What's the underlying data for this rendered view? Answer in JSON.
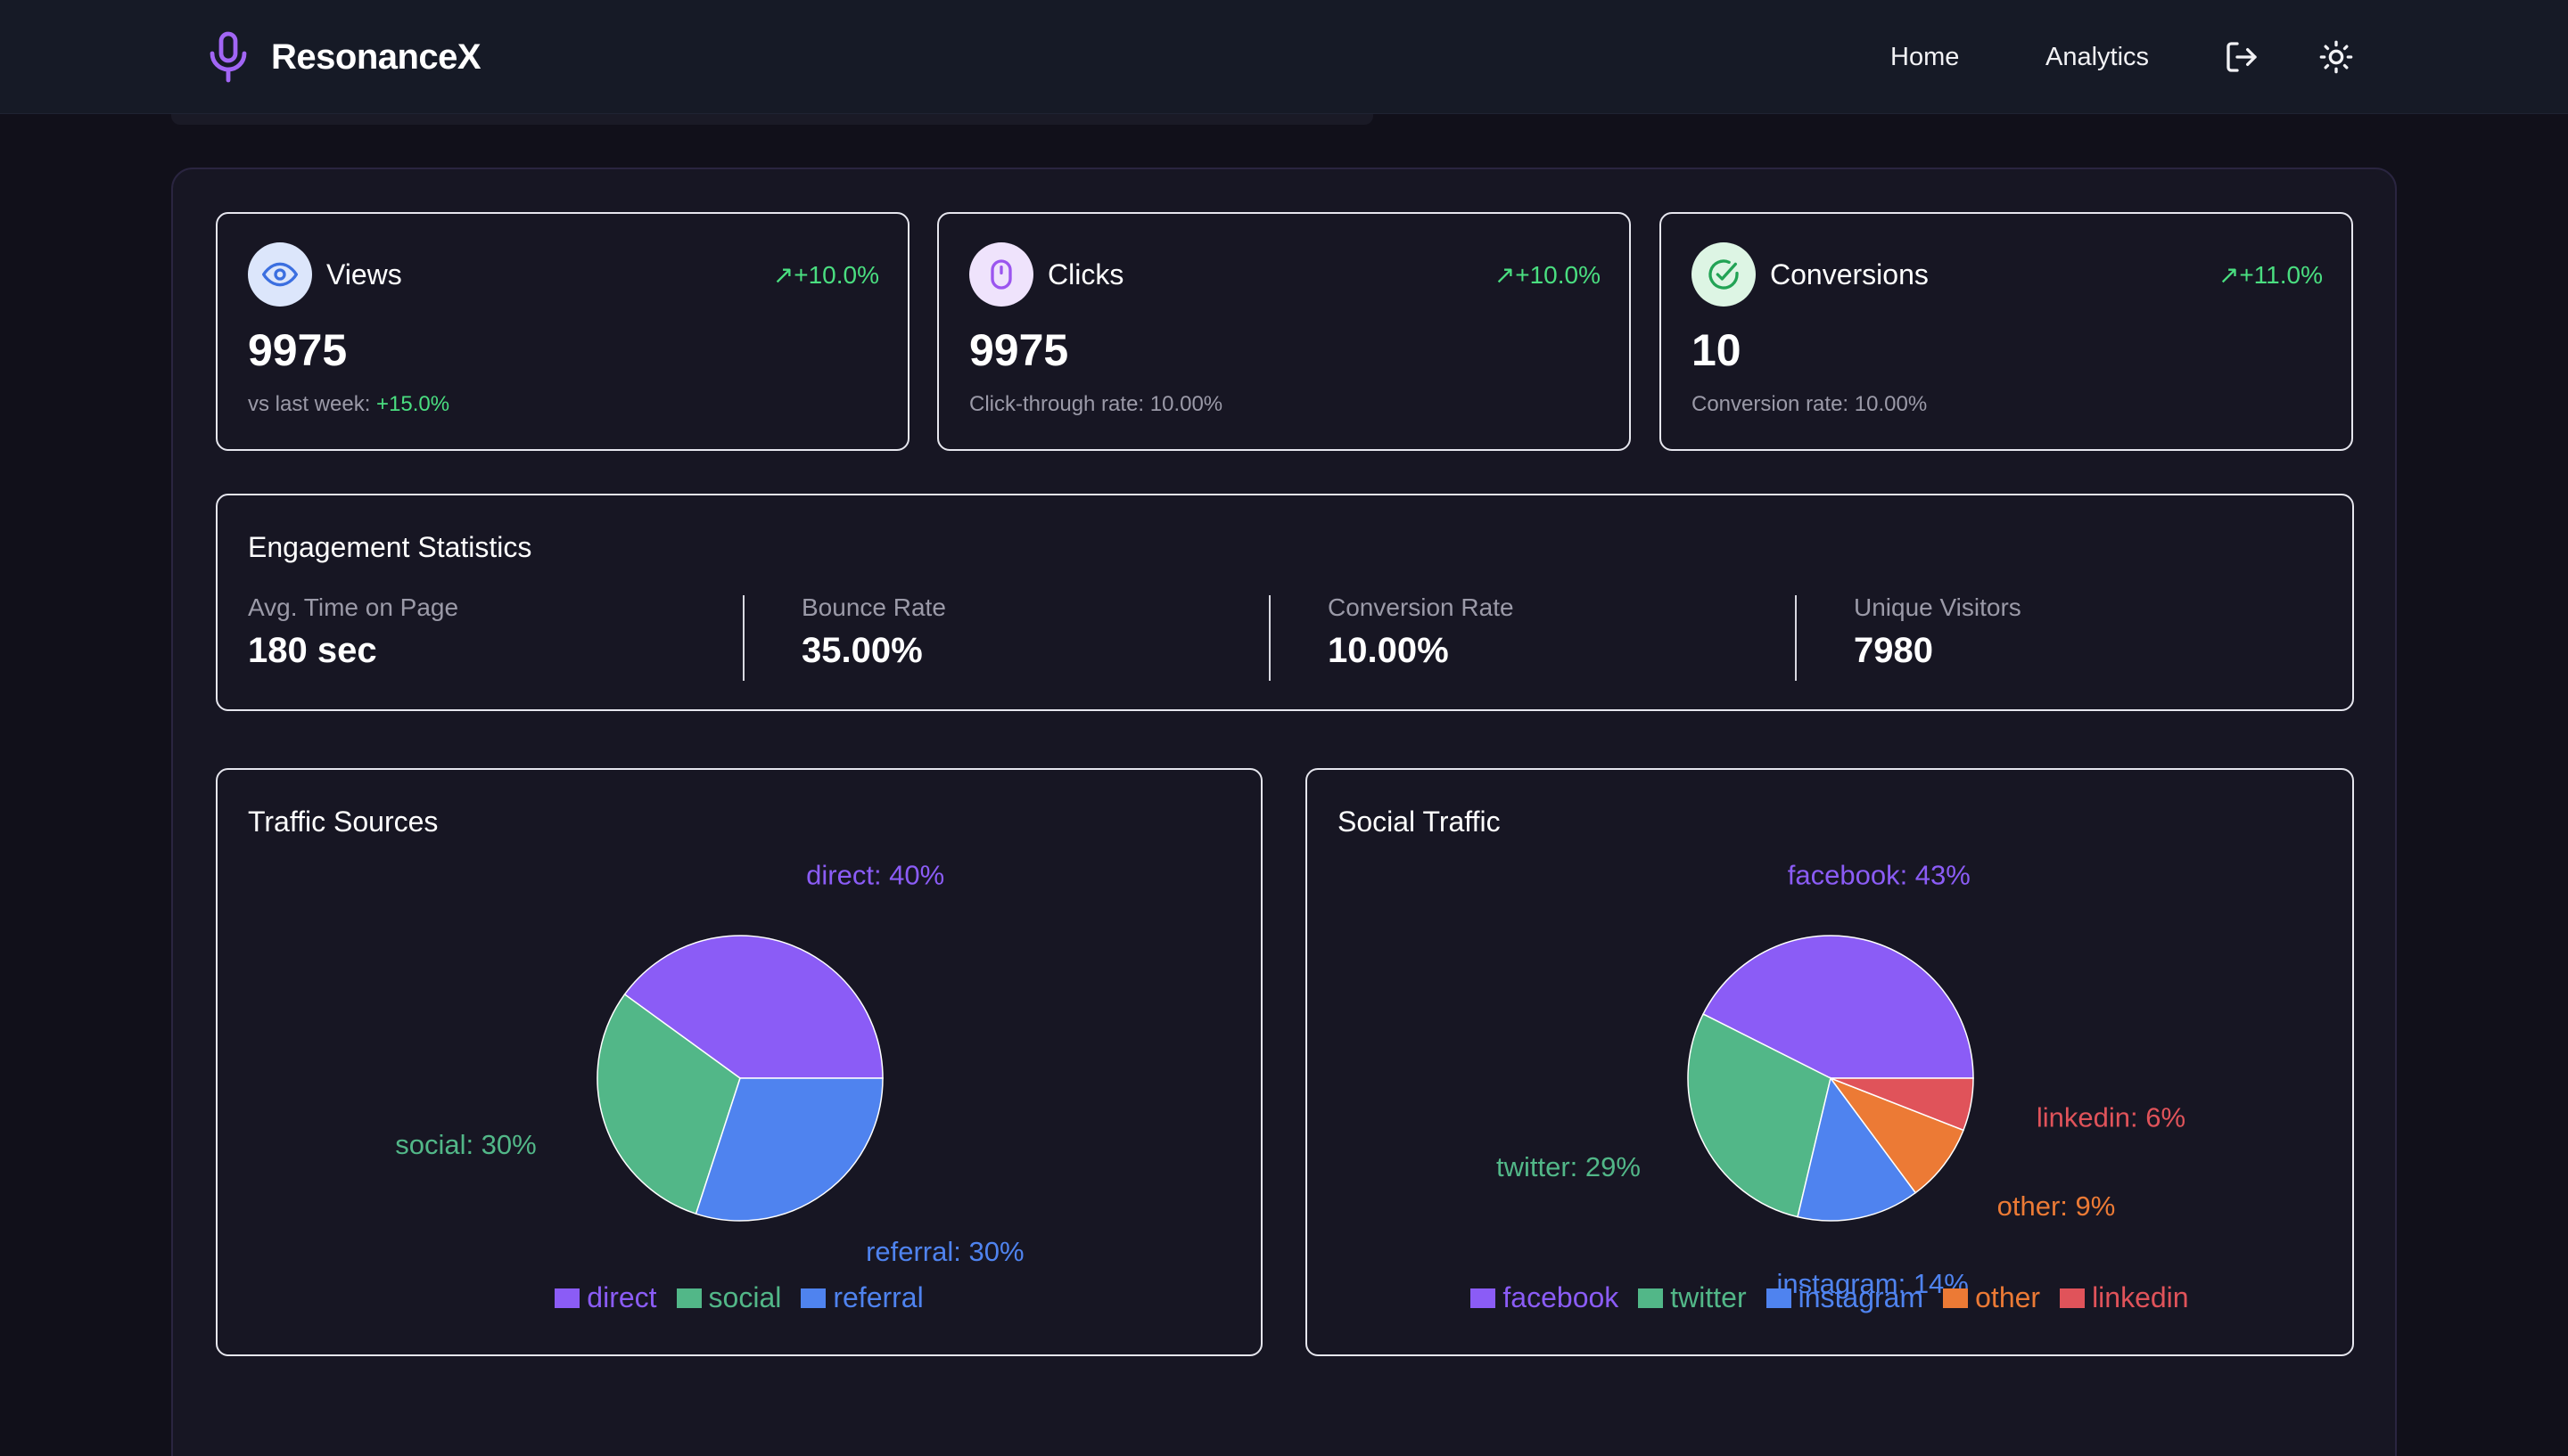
{
  "app": {
    "name": "ResonanceX"
  },
  "nav": {
    "home": "Home",
    "analytics": "Analytics"
  },
  "colors": {
    "purple": "#8b5cf6",
    "green": "#52b788",
    "blue": "#4f83ef",
    "orange": "#ec7a35",
    "red": "#e0535a",
    "up": "#4ade80"
  },
  "stats": [
    {
      "label": "Views",
      "change": "+10.0%",
      "value": "9975",
      "sub_prefix": "vs last week: ",
      "sub_value": "+15.0%",
      "icon": "eye-icon"
    },
    {
      "label": "Clicks",
      "change": "+10.0%",
      "value": "9975",
      "sub": "Click-through rate: 10.00%",
      "icon": "mouse-icon"
    },
    {
      "label": "Conversions",
      "change": "+11.0%",
      "value": "10",
      "sub": "Conversion rate: 10.00%",
      "icon": "check-circle-icon"
    }
  ],
  "engagement": {
    "title": "Engagement Statistics",
    "items": [
      {
        "label": "Avg. Time on Page",
        "value": "180 sec"
      },
      {
        "label": "Bounce Rate",
        "value": "35.00%"
      },
      {
        "label": "Conversion Rate",
        "value": "10.00%"
      },
      {
        "label": "Unique Visitors",
        "value": "7980"
      }
    ]
  },
  "chart_data": [
    {
      "type": "pie",
      "title": "Traffic Sources",
      "slices": [
        {
          "name": "direct",
          "value": 40,
          "label": "direct: 40%",
          "color": "#8b5cf6"
        },
        {
          "name": "social",
          "value": 30,
          "label": "social: 30%",
          "color": "#52b788"
        },
        {
          "name": "referral",
          "value": 30,
          "label": "referral: 30%",
          "color": "#4f83ef"
        }
      ],
      "legend": [
        "direct",
        "social",
        "referral"
      ]
    },
    {
      "type": "pie",
      "title": "Social Traffic",
      "slices": [
        {
          "name": "facebook",
          "value": 43,
          "label": "facebook: 43%",
          "color": "#8b5cf6"
        },
        {
          "name": "twitter",
          "value": 29,
          "label": "twitter: 29%",
          "color": "#52b788"
        },
        {
          "name": "instagram",
          "value": 14,
          "label": "instagram: 14%",
          "color": "#4f83ef"
        },
        {
          "name": "other",
          "value": 9,
          "label": "other: 9%",
          "color": "#ec7a35"
        },
        {
          "name": "linkedin",
          "value": 6,
          "label": "linkedin: 6%",
          "color": "#e0535a"
        }
      ],
      "legend": [
        "facebook",
        "twitter",
        "instagram",
        "other",
        "linkedin"
      ]
    }
  ]
}
